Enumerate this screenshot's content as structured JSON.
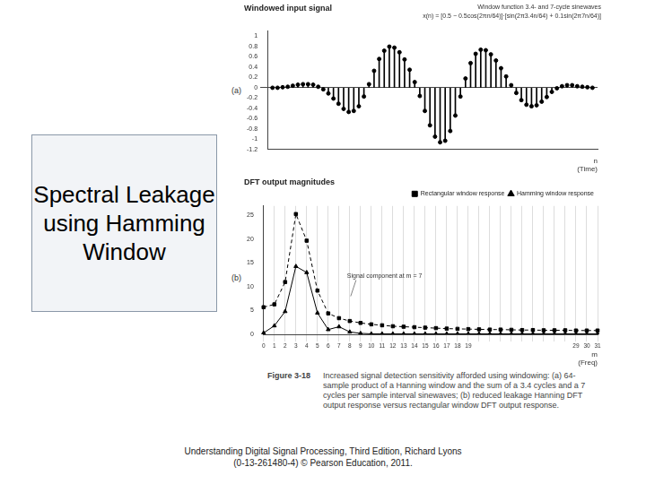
{
  "slide": {
    "title": "Spectral Leakage using Hamming Window",
    "caption_label": "Figure 3-18",
    "caption": "Increased signal detection sensitivity afforded using windowing: (a) 64-sample product of a Hanning window and the sum of a 3.4 cycles and a 7 cycles per sample interval sinewaves; (b) reduced leakage Hanning DFT output response versus rectangular window DFT output response.",
    "footer": [
      "Understanding Digital Signal Processing, Third Edition, Richard Lyons",
      "(0-13-261480-4) © Pearson Education, 2011."
    ]
  },
  "chart_data": [
    {
      "type": "stem",
      "panel": "(a)",
      "title": "Windowed input signal",
      "annotations": [
        "Window function",
        "3.4- and 7-cycle sinewaves",
        "x(n) = [0.5 − 0.5cos(2πn/64)]·[sin(2π3.4n/64) + 0.1sin(2π7n/64)]"
      ],
      "xlabel": [
        "n",
        "(Time)"
      ],
      "x": [
        0,
        1,
        2,
        3,
        4,
        5,
        6,
        7,
        8,
        9,
        10,
        11,
        12,
        13,
        14,
        15,
        16,
        17,
        18,
        19,
        20,
        21,
        22,
        23,
        24,
        25,
        26,
        27,
        28,
        29,
        30,
        31,
        32,
        33,
        34,
        35,
        36,
        37,
        38,
        39,
        40,
        41,
        42,
        43,
        44,
        45,
        46,
        47,
        48,
        49,
        50,
        51,
        52,
        53,
        54,
        55,
        56,
        57,
        58,
        59,
        60,
        61,
        62,
        63
      ],
      "values": [
        0,
        0.0,
        0.01,
        0.02,
        0.04,
        0.06,
        0.07,
        0.07,
        0.06,
        0.02,
        -0.03,
        -0.11,
        -0.21,
        -0.31,
        -0.41,
        -0.47,
        -0.45,
        -0.36,
        -0.17,
        0.07,
        0.33,
        0.56,
        0.72,
        0.8,
        0.78,
        0.69,
        0.55,
        0.35,
        0.11,
        -0.16,
        -0.45,
        -0.73,
        -0.95,
        -1.06,
        -1.03,
        -0.84,
        -0.54,
        -0.17,
        0.18,
        0.48,
        0.66,
        0.74,
        0.73,
        0.65,
        0.53,
        0.38,
        0.22,
        0.05,
        -0.1,
        -0.24,
        -0.33,
        -0.36,
        -0.34,
        -0.27,
        -0.18,
        -0.08,
        -0.01,
        0.03,
        0.05,
        0.05,
        0.03,
        0.02,
        0.01,
        0.0
      ],
      "xlim": [
        -1,
        64
      ],
      "ylim": [
        -1.2,
        1.1
      ],
      "yticks": [
        -1.2,
        -1,
        -0.8,
        -0.6,
        -0.4,
        -0.2,
        0,
        0.2,
        0.4,
        0.6,
        0.8,
        1
      ],
      "tick_labels": "y",
      "grid": false,
      "color": "#000000",
      "marker": "circle"
    },
    {
      "type": "line",
      "panel": "(b)",
      "title": "DFT output magnitudes",
      "annotations": [
        "Signal component at m = 7"
      ],
      "xlabel": [
        "m",
        "(Freq)"
      ],
      "categories": [
        0,
        1,
        2,
        3,
        4,
        5,
        6,
        7,
        8,
        9,
        10,
        11,
        12,
        13,
        14,
        15,
        16,
        17,
        18,
        19,
        null,
        null,
        null,
        null,
        null,
        null,
        null,
        null,
        null,
        29,
        30,
        31
      ],
      "series": [
        {
          "name": "Rectangular window response",
          "color": "#000000",
          "marker": "square",
          "line_style": "dashed",
          "values": [
            5.7,
            6.3,
            11,
            25.3,
            19.7,
            9.2,
            4.4,
            3.4,
            2.8,
            2.4,
            2.1,
            1.9,
            1.7,
            1.6,
            1.5,
            1.4,
            1.3,
            1.2,
            1.15,
            1.1,
            1.05,
            1.0,
            1.0,
            0.95,
            0.9,
            0.9,
            0.85,
            0.85,
            0.85,
            0.8,
            0.8,
            0.8
          ]
        },
        {
          "name": "Hamming window response",
          "color": "#000000",
          "marker": "triangle",
          "line_style": "solid",
          "values": [
            0.3,
            1.8,
            4.8,
            14.3,
            13.0,
            4.5,
            1.0,
            1.6,
            0.5,
            0.2,
            0.1,
            0.1,
            0.1,
            0.1,
            0.1,
            0.1,
            0.1,
            0.1,
            0.1,
            0.1,
            0.1,
            0.1,
            0.1,
            0.1,
            0.1,
            0.1,
            0.1,
            0.1,
            0.1,
            0.1,
            0.1,
            0.1
          ]
        }
      ],
      "ylim": [
        0,
        27
      ],
      "yticks": [
        0,
        5,
        10,
        15,
        20,
        25
      ],
      "legend": "upper right",
      "grid": "x"
    }
  ]
}
